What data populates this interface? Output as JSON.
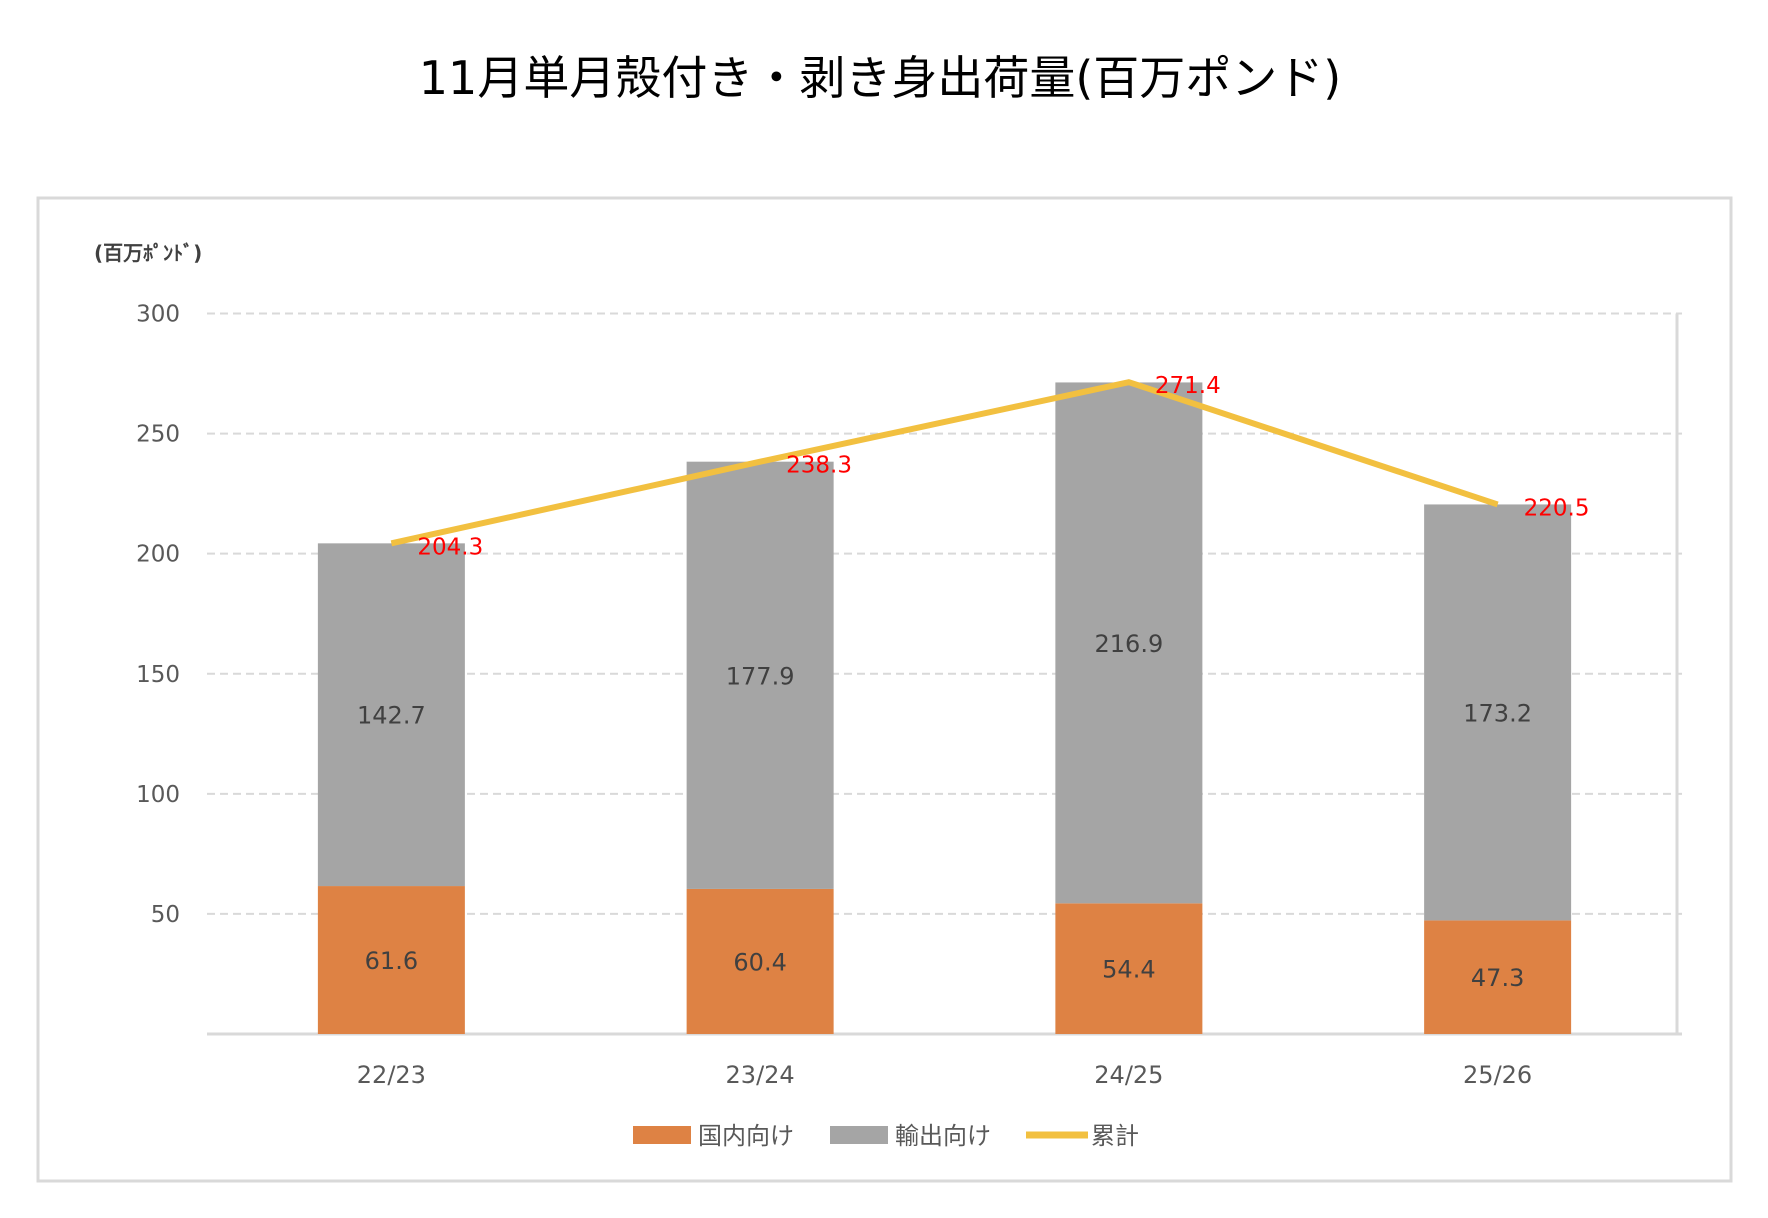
{
  "chart_data": {
    "type": "bar",
    "stacked": true,
    "title": "11月単月殻付き・剥き身出荷量(百万ポンド)",
    "ylabel": "(百万ﾎﾟﾝﾄﾞ)",
    "xlabel": "",
    "ylim": [
      0,
      300
    ],
    "yticks": [
      50,
      100,
      150,
      200,
      250,
      300
    ],
    "grid": true,
    "legend": "bottom",
    "categories": [
      "22/23",
      "23/24",
      "24/25",
      "25/26"
    ],
    "series": [
      {
        "name": "国内向け",
        "type": "bar",
        "color": "#DE8244",
        "values": [
          61.6,
          60.4,
          54.4,
          47.3
        ]
      },
      {
        "name": "輸出向け",
        "type": "bar",
        "color": "#A5A5A5",
        "values": [
          142.7,
          177.9,
          216.9,
          173.2
        ]
      },
      {
        "name": "累計",
        "type": "line",
        "color": "#F2C040",
        "label_color": "#FF0000",
        "values": [
          204.3,
          238.3,
          271.4,
          220.5
        ]
      }
    ]
  }
}
